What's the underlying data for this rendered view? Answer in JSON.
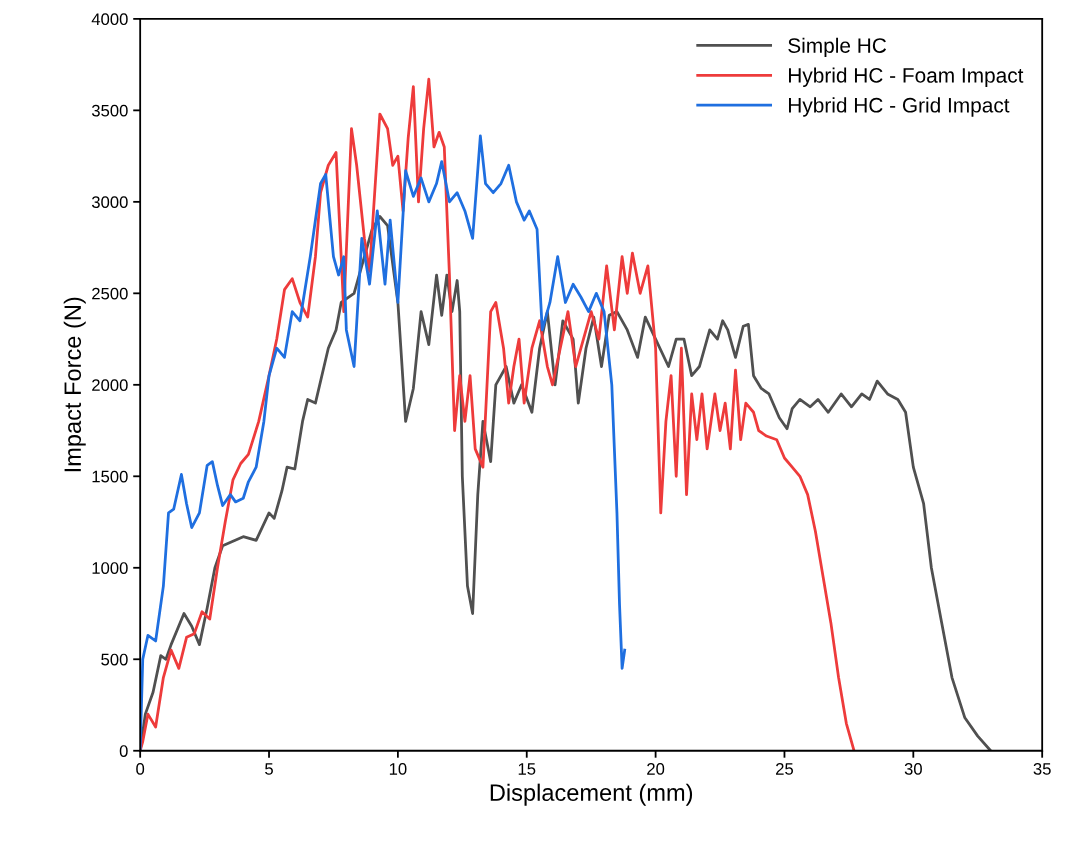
{
  "chart_data": {
    "type": "line",
    "xlabel": "Displacement (mm)",
    "ylabel": "Impact Force (N)",
    "xlim": [
      0,
      35
    ],
    "xticks": [
      0,
      5,
      10,
      15,
      20,
      25,
      30,
      35
    ],
    "ylim": [
      0,
      4000
    ],
    "yticks": [
      0,
      500,
      1000,
      1500,
      2000,
      2500,
      3000,
      3500,
      4000
    ],
    "grid": false,
    "legend": "top right",
    "marker": "none",
    "line_style": "solid",
    "series": [
      {
        "name": "Simple HC",
        "color": "#505050",
        "x": [
          0,
          0.2,
          0.5,
          0.8,
          1.0,
          1.2,
          1.7,
          2.0,
          2.3,
          2.6,
          2.9,
          3.2,
          4.0,
          4.5,
          5.0,
          5.2,
          5.5,
          5.7,
          6.0,
          6.3,
          6.5,
          6.8,
          7.3,
          7.6,
          7.8,
          8.3,
          8.7,
          9.0,
          9.3,
          9.6,
          10.0,
          10.3,
          10.6,
          10.9,
          11.2,
          11.5,
          11.7,
          11.9,
          12.1,
          12.3,
          12.4,
          12.5,
          12.7,
          12.9,
          13.1,
          13.3,
          13.6,
          13.8,
          14.2,
          14.5,
          14.8,
          15.2,
          15.5,
          15.8,
          16.1,
          16.4,
          16.8,
          17.0,
          17.3,
          17.6,
          17.9,
          18.2,
          18.5,
          18.9,
          19.3,
          19.6,
          20.0,
          20.5,
          20.8,
          21.1,
          21.4,
          21.7,
          22.1,
          22.4,
          22.6,
          22.8,
          23.1,
          23.4,
          23.6,
          23.8,
          24.1,
          24.4,
          24.8,
          25.1,
          25.3,
          25.6,
          26.0,
          26.3,
          26.7,
          27.2,
          27.6,
          28.0,
          28.3,
          28.6,
          29.0,
          29.4,
          29.7,
          30.0,
          30.4,
          30.7,
          31.1,
          31.5,
          32.0,
          32.5,
          33.0
        ],
        "values": [
          0,
          200,
          320,
          520,
          500,
          580,
          750,
          680,
          580,
          780,
          1000,
          1120,
          1170,
          1150,
          1300,
          1270,
          1420,
          1550,
          1540,
          1800,
          1920,
          1900,
          2200,
          2300,
          2450,
          2500,
          2700,
          2850,
          2920,
          2870,
          2450,
          1800,
          1980,
          2400,
          2220,
          2600,
          2380,
          2600,
          2400,
          2570,
          2400,
          1500,
          900,
          750,
          1400,
          1800,
          1580,
          2000,
          2100,
          1900,
          2000,
          1850,
          2200,
          2400,
          2000,
          2350,
          2250,
          1900,
          2200,
          2370,
          2100,
          2380,
          2400,
          2300,
          2150,
          2370,
          2250,
          2100,
          2250,
          2250,
          2050,
          2100,
          2300,
          2250,
          2350,
          2300,
          2150,
          2320,
          2330,
          2050,
          1980,
          1950,
          1820,
          1760,
          1870,
          1920,
          1880,
          1920,
          1850,
          1950,
          1880,
          1950,
          1920,
          2020,
          1950,
          1920,
          1850,
          1550,
          1350,
          1000,
          700,
          400,
          180,
          80,
          0
        ]
      },
      {
        "name": "Hybrid HC - Foam Impact",
        "color": "#ee3b3b",
        "x": [
          0,
          0.1,
          0.3,
          0.6,
          0.9,
          1.2,
          1.5,
          1.8,
          2.1,
          2.4,
          2.7,
          3.0,
          3.3,
          3.6,
          3.9,
          4.2,
          4.6,
          5.0,
          5.3,
          5.6,
          5.9,
          6.2,
          6.5,
          6.8,
          7.0,
          7.3,
          7.6,
          7.8,
          7.9,
          8.2,
          8.4,
          8.7,
          8.9,
          9.3,
          9.6,
          9.8,
          10.0,
          10.2,
          10.4,
          10.6,
          10.8,
          11.0,
          11.2,
          11.4,
          11.6,
          11.8,
          12.0,
          12.2,
          12.4,
          12.6,
          12.8,
          13.0,
          13.3,
          13.6,
          13.8,
          14.1,
          14.3,
          14.5,
          14.7,
          14.9,
          15.2,
          15.5,
          15.8,
          16.0,
          16.3,
          16.6,
          16.9,
          17.2,
          17.5,
          17.8,
          18.1,
          18.4,
          18.7,
          18.9,
          19.1,
          19.4,
          19.7,
          20.0,
          20.2,
          20.4,
          20.6,
          20.8,
          21.0,
          21.2,
          21.4,
          21.6,
          21.8,
          22.0,
          22.3,
          22.5,
          22.7,
          22.9,
          23.1,
          23.3,
          23.5,
          23.8,
          24.0,
          24.3,
          24.7,
          25.0,
          25.3,
          25.6,
          25.9,
          26.2,
          26.5,
          26.8,
          27.1,
          27.4,
          27.7
        ],
        "values": [
          0,
          50,
          200,
          130,
          400,
          550,
          450,
          620,
          640,
          760,
          720,
          1000,
          1250,
          1480,
          1570,
          1620,
          1800,
          2050,
          2250,
          2520,
          2580,
          2450,
          2370,
          2700,
          3050,
          3200,
          3270,
          2700,
          2400,
          3400,
          3200,
          2800,
          2620,
          3480,
          3400,
          3200,
          3250,
          2950,
          3350,
          3630,
          3000,
          3400,
          3670,
          3300,
          3380,
          3300,
          2600,
          1750,
          2050,
          1800,
          2050,
          1650,
          1550,
          2400,
          2450,
          2200,
          1900,
          2100,
          2250,
          1900,
          2200,
          2350,
          2100,
          2000,
          2200,
          2400,
          2100,
          2250,
          2400,
          2250,
          2650,
          2300,
          2700,
          2500,
          2720,
          2500,
          2650,
          2200,
          1300,
          1800,
          2050,
          1500,
          2200,
          1400,
          1950,
          1700,
          1950,
          1650,
          1950,
          1750,
          1900,
          1650,
          2080,
          1700,
          1900,
          1850,
          1750,
          1720,
          1700,
          1600,
          1550,
          1500,
          1400,
          1200,
          950,
          700,
          400,
          150,
          0
        ]
      },
      {
        "name": "Hybrid HC - Grid Impact",
        "color": "#1f6fe0",
        "x": [
          0,
          0.1,
          0.3,
          0.6,
          0.9,
          1.1,
          1.3,
          1.6,
          1.8,
          2.0,
          2.3,
          2.6,
          2.8,
          3.0,
          3.2,
          3.5,
          3.7,
          4.0,
          4.2,
          4.5,
          4.8,
          5.0,
          5.3,
          5.6,
          5.9,
          6.2,
          6.6,
          7.0,
          7.2,
          7.5,
          7.7,
          7.9,
          8.0,
          8.3,
          8.6,
          8.9,
          9.2,
          9.5,
          9.7,
          10.0,
          10.3,
          10.6,
          10.9,
          11.2,
          11.5,
          11.7,
          12.0,
          12.3,
          12.6,
          12.9,
          13.2,
          13.4,
          13.7,
          14.0,
          14.3,
          14.6,
          14.9,
          15.1,
          15.4,
          15.6,
          15.9,
          16.2,
          16.5,
          16.8,
          17.1,
          17.4,
          17.7,
          18.0,
          18.3,
          18.5,
          18.6,
          18.7,
          18.8
        ],
        "values": [
          0,
          500,
          630,
          600,
          900,
          1300,
          1320,
          1510,
          1350,
          1220,
          1300,
          1560,
          1580,
          1450,
          1340,
          1400,
          1360,
          1380,
          1470,
          1550,
          1800,
          2050,
          2200,
          2150,
          2400,
          2350,
          2700,
          3100,
          3150,
          2700,
          2600,
          2700,
          2300,
          2100,
          2800,
          2550,
          2950,
          2550,
          2900,
          2450,
          3170,
          3030,
          3130,
          3000,
          3100,
          3220,
          3000,
          3050,
          2950,
          2800,
          3360,
          3100,
          3050,
          3100,
          3200,
          3000,
          2900,
          2950,
          2850,
          2300,
          2450,
          2700,
          2450,
          2550,
          2480,
          2400,
          2500,
          2400,
          2000,
          1300,
          800,
          450,
          550
        ]
      }
    ]
  }
}
